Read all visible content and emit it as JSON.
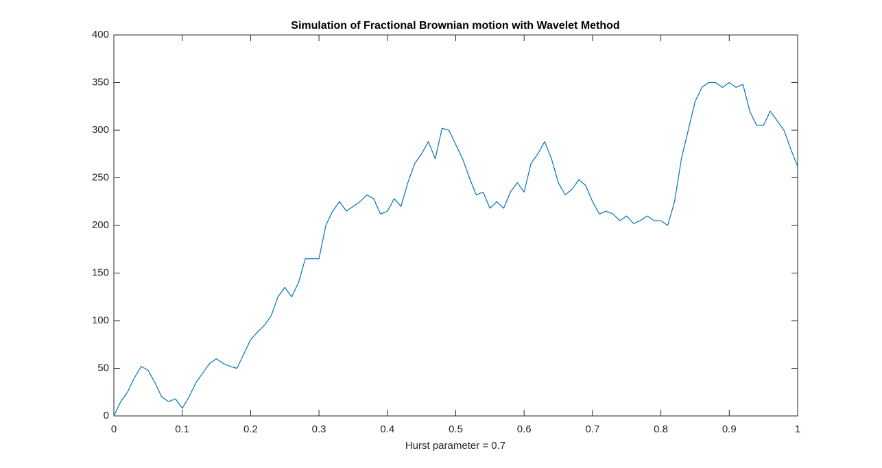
{
  "chart_data": {
    "type": "line",
    "title": "Simulation of Fractional Brownian motion with Wavelet Method",
    "x_label": "Hurst parameter = 0.7",
    "x": [
      0,
      0.01,
      0.02,
      0.03,
      0.04,
      0.05,
      0.06,
      0.07,
      0.08,
      0.09,
      0.1,
      0.11,
      0.12,
      0.13,
      0.14,
      0.15,
      0.16,
      0.17,
      0.18,
      0.19,
      0.2,
      0.21,
      0.22,
      0.23,
      0.24,
      0.25,
      0.26,
      0.27,
      0.28,
      0.29,
      0.3,
      0.31,
      0.32,
      0.33,
      0.34,
      0.35,
      0.36,
      0.37,
      0.38,
      0.39,
      0.4,
      0.41,
      0.42,
      0.43,
      0.44,
      0.45,
      0.46,
      0.47,
      0.48,
      0.49,
      0.5,
      0.51,
      0.52,
      0.53,
      0.54,
      0.55,
      0.56,
      0.57,
      0.58,
      0.59,
      0.6,
      0.61,
      0.62,
      0.63,
      0.64,
      0.65,
      0.66,
      0.67,
      0.68,
      0.69,
      0.7,
      0.71,
      0.72,
      0.73,
      0.74,
      0.75,
      0.76,
      0.77,
      0.78,
      0.79,
      0.8,
      0.81,
      0.82,
      0.83,
      0.84,
      0.85,
      0.86,
      0.87,
      0.88,
      0.89,
      0.9,
      0.91,
      0.92,
      0.93,
      0.94,
      0.95,
      0.96,
      0.97,
      0.98,
      0.99,
      1
    ],
    "series": [
      {
        "color": "#0072bd",
        "values": [
          0,
          15,
          25,
          40,
          52,
          48,
          35,
          20,
          15,
          18,
          8,
          20,
          35,
          45,
          55,
          60,
          55,
          52,
          50,
          65,
          80,
          88,
          95,
          105,
          125,
          135,
          125,
          140,
          165,
          165,
          165,
          200,
          215,
          225,
          215,
          220,
          225,
          232,
          228,
          212,
          215,
          228,
          220,
          245,
          265,
          275,
          288,
          270,
          302,
          300,
          285,
          270,
          250,
          232,
          235,
          218,
          225,
          218,
          235,
          245,
          235,
          265,
          275,
          288,
          270,
          245,
          232,
          238,
          248,
          242,
          225,
          212,
          215,
          212,
          205,
          210,
          202,
          205,
          210,
          205,
          205,
          200,
          225,
          270,
          300,
          330,
          345,
          350,
          350,
          345,
          350,
          345,
          348,
          320,
          305,
          305,
          320,
          310,
          300,
          280,
          262
        ]
      }
    ],
    "xlim": [
      0,
      1
    ],
    "ylim": [
      0,
      400
    ],
    "xticks": [
      0,
      0.1,
      0.2,
      0.3,
      0.4,
      0.5,
      0.6,
      0.7,
      0.8,
      0.9,
      1
    ],
    "yticks": [
      0,
      50,
      100,
      150,
      200,
      250,
      300,
      350,
      400
    ]
  }
}
